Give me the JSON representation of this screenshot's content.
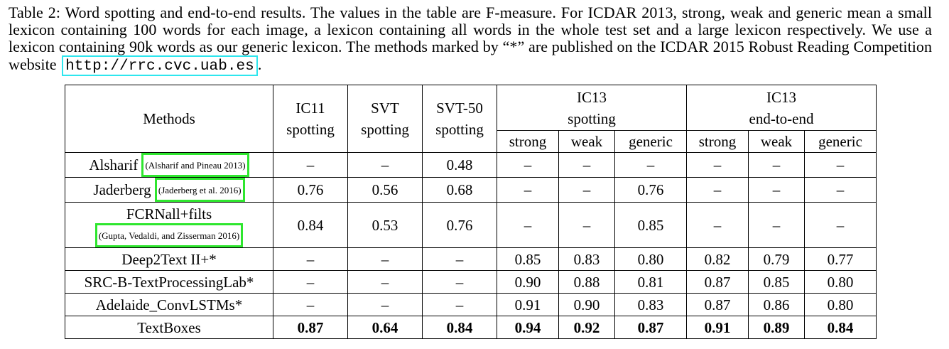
{
  "caption": {
    "text": "Table 2: Word spotting and end-to-end results. The values in the table are F-measure. For ICDAR 2013, strong, weak and generic mean a small lexicon containing 100 words for each image, a lexicon containing all words in the whole test set and a large lexicon respectively. We use a lexicon containing 90k words as our generic lexicon. The methods marked by “*” are published on the ICDAR 2015 Robust Reading Competition website",
    "url": "http://rrc.cvc.uab.es",
    "end": "."
  },
  "table": {
    "header": {
      "methods": "Methods",
      "ic11": "IC11",
      "ic11_sub": "spotting",
      "svt": "SVT",
      "svt_sub": "spotting",
      "svt50": "SVT-50",
      "svt50_sub": "spotting",
      "ic13_spot": "IC13",
      "ic13_spot_sub": "spotting",
      "ic13_e2e": "IC13",
      "ic13_e2e_sub": "end-to-end",
      "sub": [
        "strong",
        "weak",
        "generic",
        "strong",
        "weak",
        "generic"
      ]
    },
    "rows": [
      {
        "name": "Alsharif",
        "cite": "(Alsharif and Pineau 2013)",
        "values": [
          "–",
          "–",
          "0.48",
          "–",
          "–",
          "–",
          "–",
          "–",
          "–"
        ]
      },
      {
        "name": "Jaderberg",
        "cite": "(Jaderberg et al. 2016)",
        "values": [
          "0.76",
          "0.56",
          "0.68",
          "–",
          "–",
          "0.76",
          "–",
          "–",
          "–"
        ]
      },
      {
        "name": "FCRNall+filts",
        "cite": "(Gupta, Vedaldi, and Zisserman 2016)",
        "values": [
          "0.84",
          "0.53",
          "0.76",
          "–",
          "–",
          "0.85",
          "–",
          "–",
          "–"
        ]
      },
      {
        "name": "Deep2Text II+*",
        "values": [
          "–",
          "–",
          "–",
          "0.85",
          "0.83",
          "0.80",
          "0.82",
          "0.79",
          "0.77"
        ]
      },
      {
        "name": "SRC-B-TextProcessingLab*",
        "values": [
          "–",
          "–",
          "–",
          "0.90",
          "0.88",
          "0.81",
          "0.87",
          "0.85",
          "0.80"
        ]
      },
      {
        "name": "Adelaide_ConvLSTMs*",
        "values": [
          "–",
          "–",
          "–",
          "0.91",
          "0.90",
          "0.83",
          "0.87",
          "0.86",
          "0.80"
        ]
      },
      {
        "name": "TextBoxes",
        "values": [
          "0.87",
          "0.64",
          "0.84",
          "0.94",
          "0.92",
          "0.87",
          "0.91",
          "0.89",
          "0.84"
        ]
      }
    ]
  }
}
